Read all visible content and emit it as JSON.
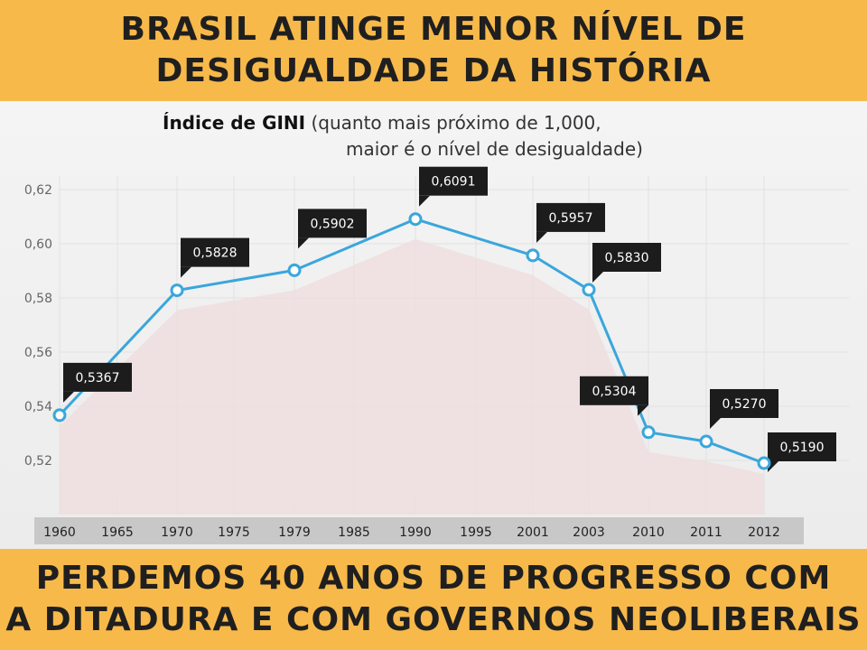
{
  "header": {
    "line1": "BRASIL ATINGE MENOR NÍVEL DE",
    "line2": "DESIGUALDADE DA HISTÓRIA"
  },
  "footer": {
    "line1": "PERDEMOS 40 ANOS DE PROGRESSO COM",
    "line2": "A DITADURA E COM GOVERNOS NEOLIBERAIS"
  },
  "chart_data": {
    "type": "line",
    "title": "Índice de GINI",
    "subtitle_line1": "(quanto mais próximo de 1,000,",
    "subtitle_line2": "maior é o nível de desigualdade)",
    "xlabel": "",
    "ylabel": "",
    "categories": [
      "1960",
      "1965",
      "1970",
      "1975",
      "1979",
      "1985",
      "1990",
      "1995",
      "2001",
      "2003",
      "2010",
      "2011",
      "2012"
    ],
    "ylim": [
      0.51,
      0.625
    ],
    "yticks": [
      "0,52",
      "0,54",
      "0,56",
      "0,58",
      "0,60",
      "0,62"
    ],
    "ytick_values": [
      0.52,
      0.54,
      0.56,
      0.58,
      0.6,
      0.62
    ],
    "grid": true,
    "series": [
      {
        "points": [
          {
            "x": "1960",
            "y": 0.5367,
            "label": "0,5367"
          },
          {
            "x": "1970",
            "y": 0.5828,
            "label": "0,5828"
          },
          {
            "x": "1979",
            "y": 0.5902,
            "label": "0,5902"
          },
          {
            "x": "1990",
            "y": 0.6091,
            "label": "0,6091"
          },
          {
            "x": "2001",
            "y": 0.5957,
            "label": "0,5957"
          },
          {
            "x": "2003",
            "y": 0.583,
            "label": "0,5830"
          },
          {
            "x": "2010",
            "y": 0.5304,
            "label": "0,5304"
          },
          {
            "x": "2011",
            "y": 0.527,
            "label": "0,5270"
          },
          {
            "x": "2012",
            "y": 0.519,
            "label": "0,5190"
          }
        ]
      }
    ],
    "colors": {
      "line": "#3aa6dc",
      "area": "#efdcdc",
      "label_bg": "#1c1c1c",
      "label_text": "#ffffff",
      "axis_bar": "#c8c8c8"
    }
  }
}
